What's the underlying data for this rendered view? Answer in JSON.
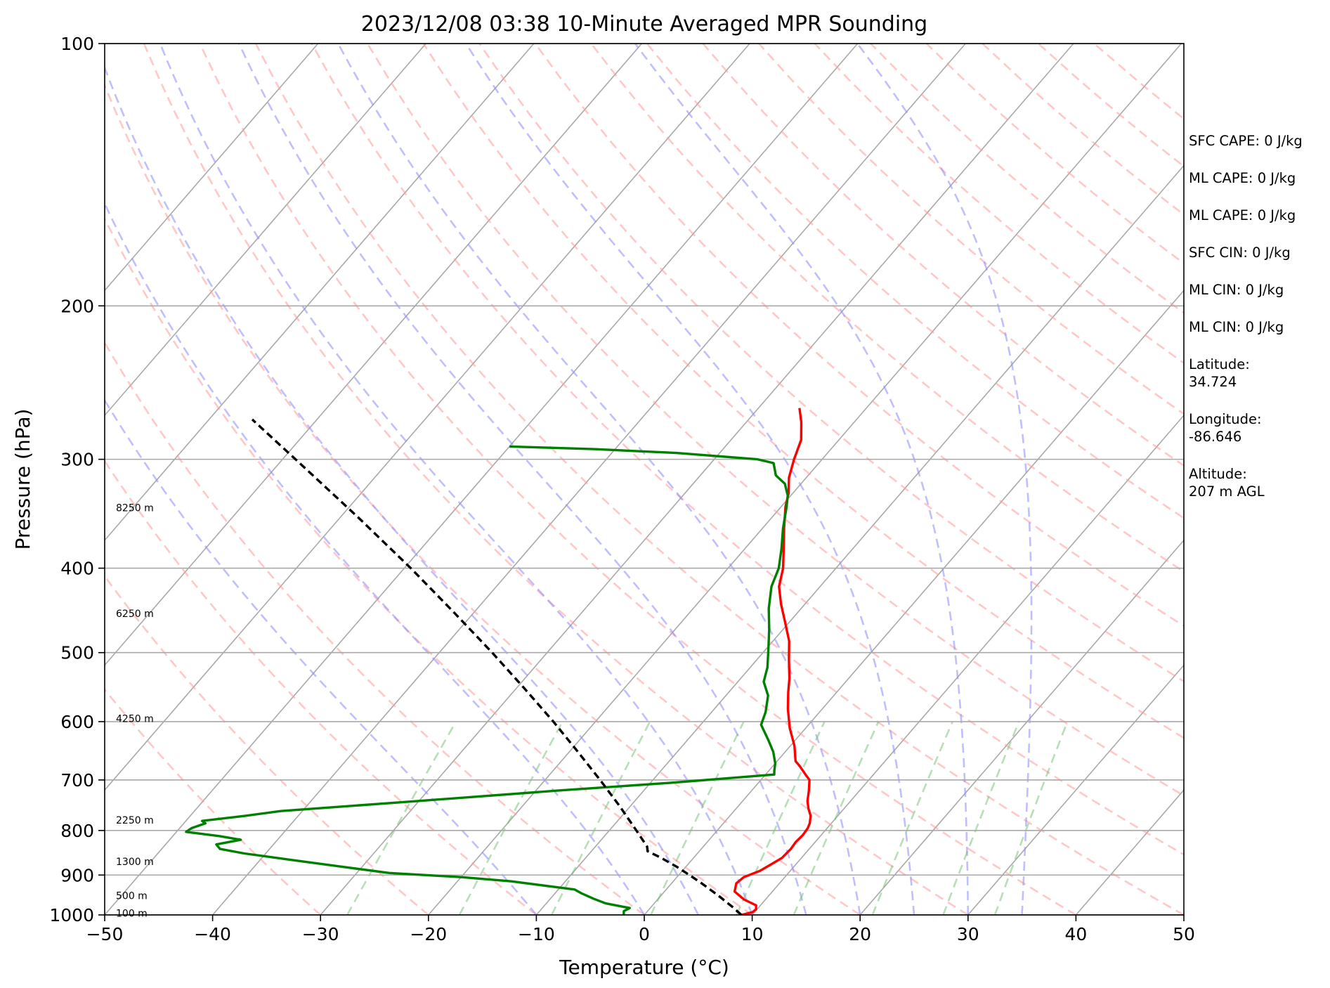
{
  "chart_data": {
    "type": "line",
    "title": "2023/12/08 03:38 10-Minute Averaged MPR Sounding",
    "xlabel": "Temperature (°C)",
    "ylabel": "Pressure (hPa)",
    "xlim": [
      -50,
      50
    ],
    "ylim": [
      1000,
      100
    ],
    "y_scale": "log",
    "x_ticks": [
      -50,
      -40,
      -30,
      -20,
      -10,
      0,
      10,
      20,
      30,
      40,
      50
    ],
    "x_tick_labels": [
      "−50",
      "−40",
      "−30",
      "−20",
      "−10",
      "0",
      "10",
      "20",
      "30",
      "40",
      "50"
    ],
    "y_ticks": [
      1000,
      900,
      800,
      700,
      600,
      500,
      400,
      300,
      200,
      100
    ],
    "y_tick_labels": [
      "1000",
      "900",
      "800",
      "700",
      "600",
      "500",
      "400",
      "300",
      "200",
      "100"
    ],
    "grid": "horizontal at y ticks",
    "skew_isotherms": [
      -100,
      -90,
      -80,
      -70,
      -60,
      -50,
      -40,
      -30,
      -20,
      -10,
      0,
      10,
      20,
      30,
      40,
      50
    ],
    "dry_adiabats_theta_c": [
      -30,
      -20,
      -10,
      0,
      10,
      20,
      30,
      40,
      50,
      60,
      70,
      80,
      90,
      100,
      110,
      120,
      130,
      140,
      150,
      160,
      170,
      180,
      190,
      200
    ],
    "moist_adiabats_c": [
      -10,
      0,
      5,
      10,
      15,
      20,
      25,
      30,
      35
    ],
    "mixing_ratio_lines": [
      0.0004,
      0.001,
      0.002,
      0.004,
      0.007,
      0.01,
      0.016,
      0.024,
      0.032
    ],
    "height_labels": [
      {
        "text": "100 m",
        "p": 995
      },
      {
        "text": "500 m",
        "p": 950
      },
      {
        "text": "1300 m",
        "p": 868
      },
      {
        "text": "2250 m",
        "p": 778
      },
      {
        "text": "4250 m",
        "p": 595
      },
      {
        "text": "6250 m",
        "p": 451
      },
      {
        "text": "8250 m",
        "p": 341
      }
    ],
    "series": [
      {
        "color": "#ff0000",
        "points": [
          {
            "p": 1000,
            "t": 9
          },
          {
            "p": 993,
            "t": 9.8
          },
          {
            "p": 985,
            "t": 9.9
          },
          {
            "p": 975,
            "t": 9.6
          },
          {
            "p": 960,
            "t": 8
          },
          {
            "p": 940,
            "t": 6.5
          },
          {
            "p": 920,
            "t": 6
          },
          {
            "p": 905,
            "t": 6.2
          },
          {
            "p": 890,
            "t": 7.2
          },
          {
            "p": 875,
            "t": 7.7
          },
          {
            "p": 860,
            "t": 8.2
          },
          {
            "p": 840,
            "t": 8.3
          },
          {
            "p": 825,
            "t": 8.2
          },
          {
            "p": 810,
            "t": 8.3
          },
          {
            "p": 795,
            "t": 8.2
          },
          {
            "p": 785,
            "t": 8.0
          },
          {
            "p": 770,
            "t": 7.5
          },
          {
            "p": 755,
            "t": 6.7
          },
          {
            "p": 740,
            "t": 6.0
          },
          {
            "p": 720,
            "t": 5.3
          },
          {
            "p": 700,
            "t": 4.5
          },
          {
            "p": 690,
            "t": 3.7
          },
          {
            "p": 675,
            "t": 2.5
          },
          {
            "p": 666,
            "t": 1.7
          },
          {
            "p": 640,
            "t": 0.4
          },
          {
            "p": 610,
            "t": -1.5
          },
          {
            "p": 580,
            "t": -3.2
          },
          {
            "p": 555,
            "t": -4.5
          },
          {
            "p": 535,
            "t": -5.5
          },
          {
            "p": 510,
            "t": -7.0
          },
          {
            "p": 485,
            "t": -8.5
          },
          {
            "p": 460,
            "t": -10.5
          },
          {
            "p": 440,
            "t": -12.2
          },
          {
            "p": 420,
            "t": -13.8
          },
          {
            "p": 400,
            "t": -14.9
          },
          {
            "p": 380,
            "t": -16.4
          },
          {
            "p": 360,
            "t": -18.0
          },
          {
            "p": 340,
            "t": -19.6
          },
          {
            "p": 328,
            "t": -20.4
          },
          {
            "p": 315,
            "t": -21.6
          },
          {
            "p": 300,
            "t": -22.6
          },
          {
            "p": 285,
            "t": -23.5
          },
          {
            "p": 272,
            "t": -24.9
          },
          {
            "p": 262,
            "t": -26.2
          }
        ]
      },
      {
        "color": "#008000",
        "points": [
          {
            "p": 1000,
            "t": -1.9
          },
          {
            "p": 990,
            "t": -2.2
          },
          {
            "p": 982,
            "t": -1.9
          },
          {
            "p": 970,
            "t": -4.5
          },
          {
            "p": 958,
            "t": -6.0
          },
          {
            "p": 945,
            "t": -7.5
          },
          {
            "p": 935,
            "t": -8.5
          },
          {
            "p": 915,
            "t": -15
          },
          {
            "p": 905,
            "t": -20
          },
          {
            "p": 895,
            "t": -27
          },
          {
            "p": 880,
            "t": -32
          },
          {
            "p": 865,
            "t": -37
          },
          {
            "p": 850,
            "t": -42
          },
          {
            "p": 840,
            "t": -44.6
          },
          {
            "p": 830,
            "t": -45.3
          },
          {
            "p": 820,
            "t": -43.4
          },
          {
            "p": 812,
            "t": -45.7
          },
          {
            "p": 803,
            "t": -49.1
          },
          {
            "p": 795,
            "t": -48.9
          },
          {
            "p": 785,
            "t": -48.0
          },
          {
            "p": 780,
            "t": -48.5
          },
          {
            "p": 770,
            "t": -45
          },
          {
            "p": 760,
            "t": -42
          },
          {
            "p": 740,
            "t": -30
          },
          {
            "p": 720,
            "t": -18
          },
          {
            "p": 705,
            "t": -8
          },
          {
            "p": 690,
            "t": 0.8
          },
          {
            "p": 683,
            "t": 0.5
          },
          {
            "p": 670,
            "t": 0.0
          },
          {
            "p": 650,
            "t": -1.1
          },
          {
            "p": 630,
            "t": -2.5
          },
          {
            "p": 605,
            "t": -4.4
          },
          {
            "p": 585,
            "t": -5.0
          },
          {
            "p": 560,
            "t": -6.1
          },
          {
            "p": 540,
            "t": -7.6
          },
          {
            "p": 520,
            "t": -8.4
          },
          {
            "p": 495,
            "t": -9.8
          },
          {
            "p": 470,
            "t": -11.3
          },
          {
            "p": 445,
            "t": -13.0
          },
          {
            "p": 420,
            "t": -14.5
          },
          {
            "p": 400,
            "t": -15.3
          },
          {
            "p": 380,
            "t": -16.6
          },
          {
            "p": 360,
            "t": -18.1
          },
          {
            "p": 340,
            "t": -19.5
          },
          {
            "p": 330,
            "t": -20.3
          },
          {
            "p": 320,
            "t": -21.5
          },
          {
            "p": 313,
            "t": -23.0
          },
          {
            "p": 303,
            "t": -24.2
          },
          {
            "p": 300,
            "t": -26
          },
          {
            "p": 295,
            "t": -34
          },
          {
            "p": 292,
            "t": -42
          },
          {
            "p": 290,
            "t": -50
          }
        ]
      },
      {
        "color": "#000000",
        "dashed": true,
        "points": [
          {
            "p": 1000,
            "t": 9
          },
          {
            "p": 980,
            "t": 7.6
          },
          {
            "p": 950,
            "t": 5.3
          },
          {
            "p": 920,
            "t": 2.8
          },
          {
            "p": 900,
            "t": 1.0
          },
          {
            "p": 880,
            "t": -0.9
          },
          {
            "p": 860,
            "t": -3.0
          },
          {
            "p": 845,
            "t": -4.8
          },
          {
            "p": 835,
            "t": -5.2
          },
          {
            "p": 800,
            "t": -7.5
          },
          {
            "p": 750,
            "t": -11.0
          },
          {
            "p": 700,
            "t": -14.9
          },
          {
            "p": 650,
            "t": -19.2
          },
          {
            "p": 600,
            "t": -23.9
          },
          {
            "p": 550,
            "t": -29.2
          },
          {
            "p": 500,
            "t": -35.1
          },
          {
            "p": 450,
            "t": -41.8
          },
          {
            "p": 400,
            "t": -49.4
          },
          {
            "p": 350,
            "t": -58.3
          },
          {
            "p": 300,
            "t": -68.8
          },
          {
            "p": 270,
            "t": -76.0
          }
        ]
      }
    ]
  },
  "sidebar": [
    "SFC CAPE: 0 J/kg",
    "ML CAPE: 0 J/kg",
    "ML CAPE: 0 J/kg",
    "SFC CIN: 0 J/kg",
    "ML CIN: 0 J/kg",
    "ML CIN: 0 J/kg",
    "Latitude:\n34.724",
    "Longitude:\n-86.646",
    "Altitude:\n207 m AGL"
  ]
}
